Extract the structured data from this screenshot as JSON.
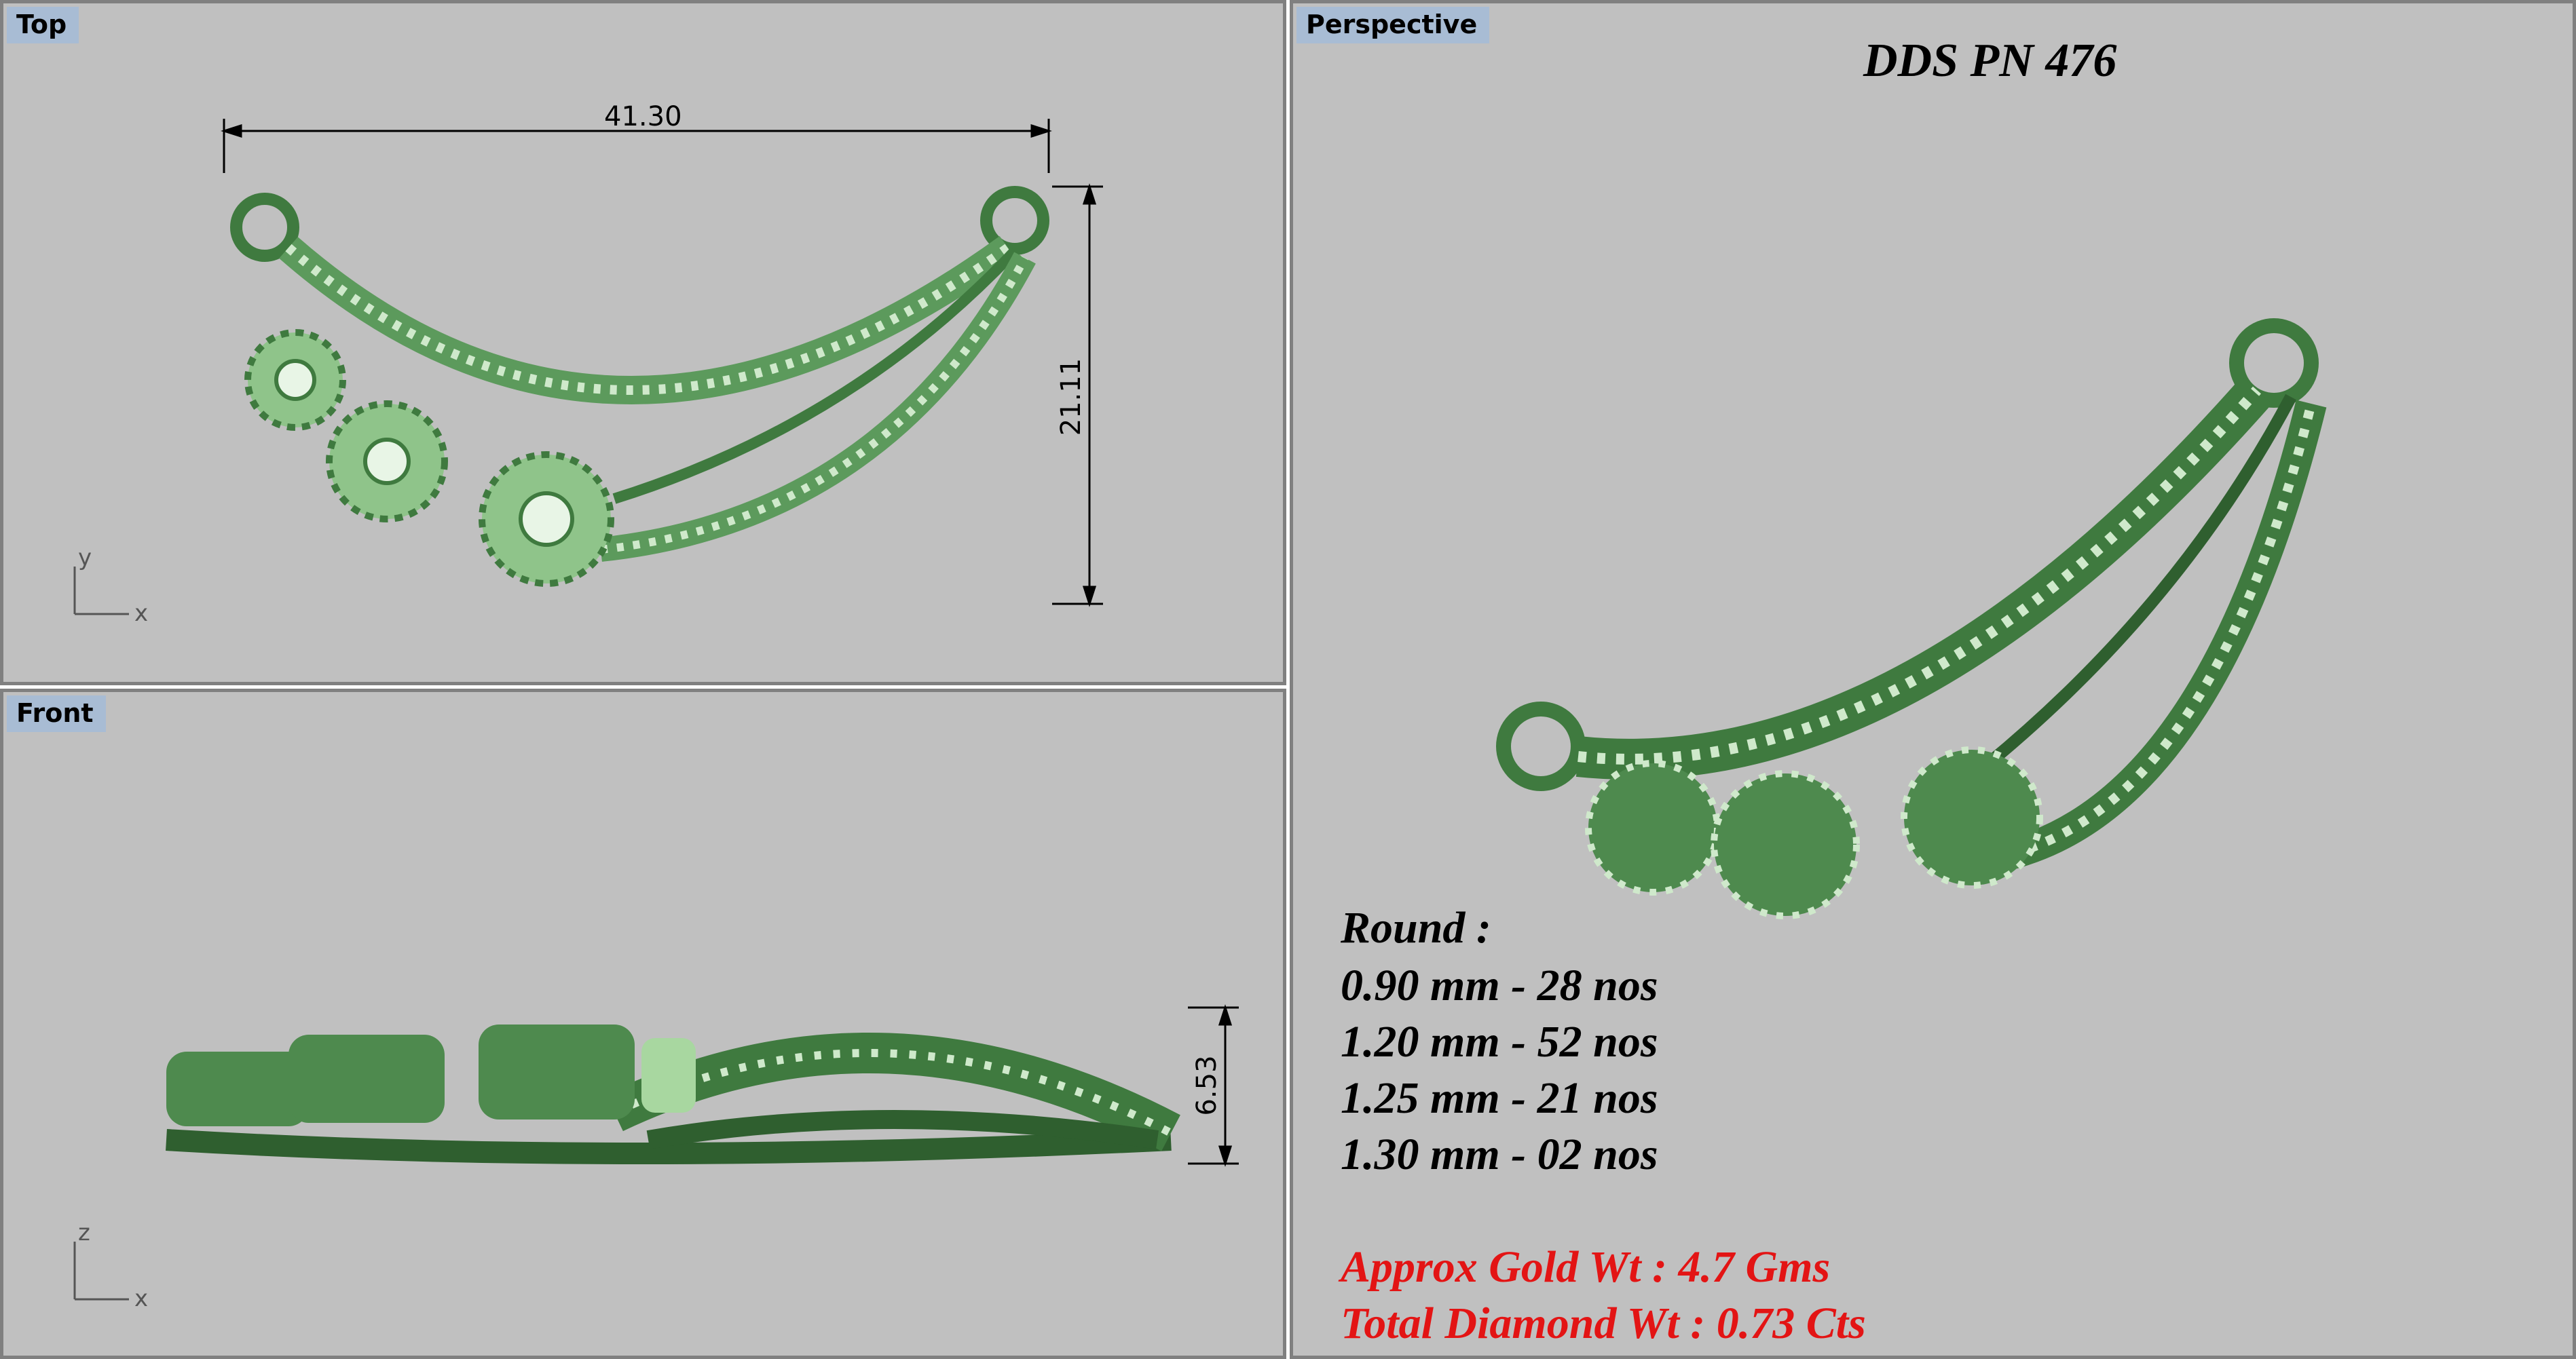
{
  "viewports": {
    "top": {
      "label": "Top",
      "dim_width": "41.30",
      "dim_height": "21.11",
      "axis_a": "y",
      "axis_b": "x"
    },
    "front": {
      "label": "Front",
      "dim_height": "6.53",
      "axis_a": "z",
      "axis_b": "x"
    },
    "perspective": {
      "label": "Perspective"
    }
  },
  "design": {
    "title": "DDS PN 476",
    "round_heading": "Round :",
    "stones": [
      "0.90 mm - 28 nos",
      "1.20 mm - 52 nos",
      "1.25 mm - 21 nos",
      "1.30 mm - 02 nos"
    ],
    "gold_weight": "Approx Gold Wt : 4.7 Gms",
    "diamond_weight": "Total Diamond Wt :  0.73 Cts"
  },
  "colors": {
    "metal": "#4e8a4e",
    "metal_dark": "#2f5f2f",
    "metal_light": "#a8d7a0",
    "accent_red": "#e31414",
    "viewport_bg": "#c0c0c0"
  }
}
